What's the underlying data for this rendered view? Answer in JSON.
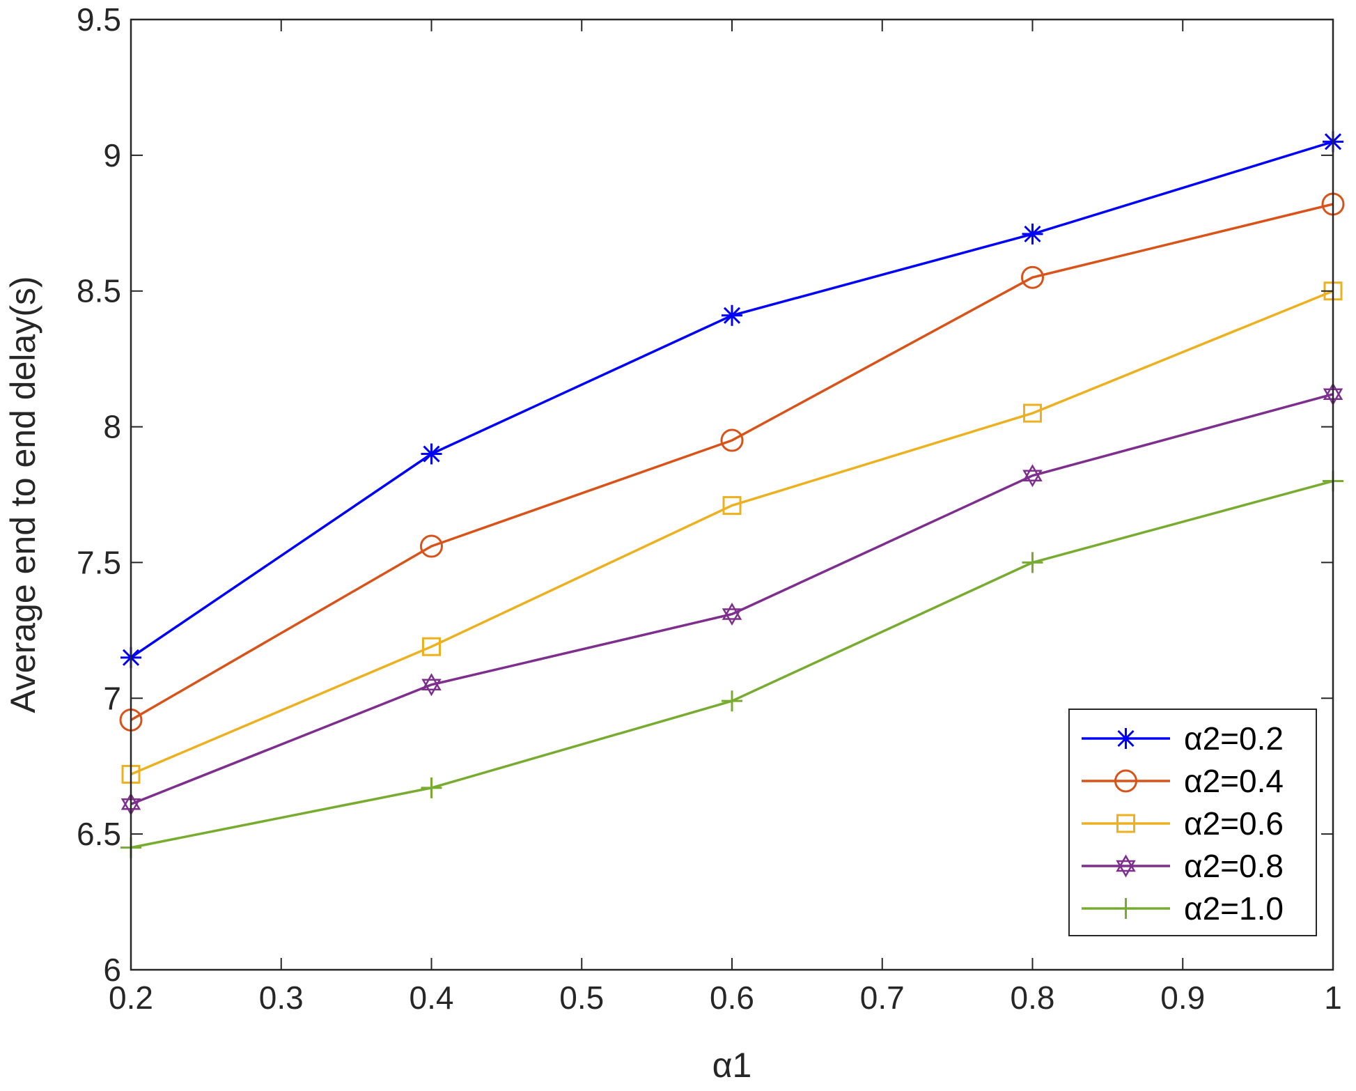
{
  "chart_data": {
    "type": "line",
    "title": "",
    "xlabel": "α1",
    "ylabel": "Average end to end delay(s)",
    "xlim": [
      0.2,
      1
    ],
    "ylim": [
      6,
      9.5
    ],
    "x_ticks": [
      "0.2",
      "0.3",
      "0.4",
      "0.5",
      "0.6",
      "0.7",
      "0.8",
      "0.9",
      "1"
    ],
    "y_ticks": [
      "6",
      "6.5",
      "7",
      "7.5",
      "8",
      "8.5",
      "9",
      "9.5"
    ],
    "grid": false,
    "legend_position": "bottom-right",
    "x": [
      0.2,
      0.4,
      0.6,
      0.8,
      1.0
    ],
    "series": [
      {
        "name": "α2=0.2",
        "color": "#0000ff",
        "marker": "asterisk",
        "values": [
          7.15,
          7.9,
          8.41,
          8.71,
          9.05
        ]
      },
      {
        "name": "α2=0.4",
        "color": "#d95319",
        "marker": "circle",
        "values": [
          6.92,
          7.56,
          7.95,
          8.55,
          8.82
        ]
      },
      {
        "name": "α2=0.6",
        "color": "#edb120",
        "marker": "square",
        "values": [
          6.72,
          7.19,
          7.71,
          8.05,
          8.5
        ]
      },
      {
        "name": "α2=0.8",
        "color": "#7e2f8e",
        "marker": "hexagram",
        "values": [
          6.61,
          7.05,
          7.31,
          7.82,
          8.12
        ]
      },
      {
        "name": "α2=1.0",
        "color": "#77ac30",
        "marker": "plus",
        "values": [
          6.45,
          6.67,
          6.99,
          7.5,
          7.8
        ]
      }
    ]
  }
}
